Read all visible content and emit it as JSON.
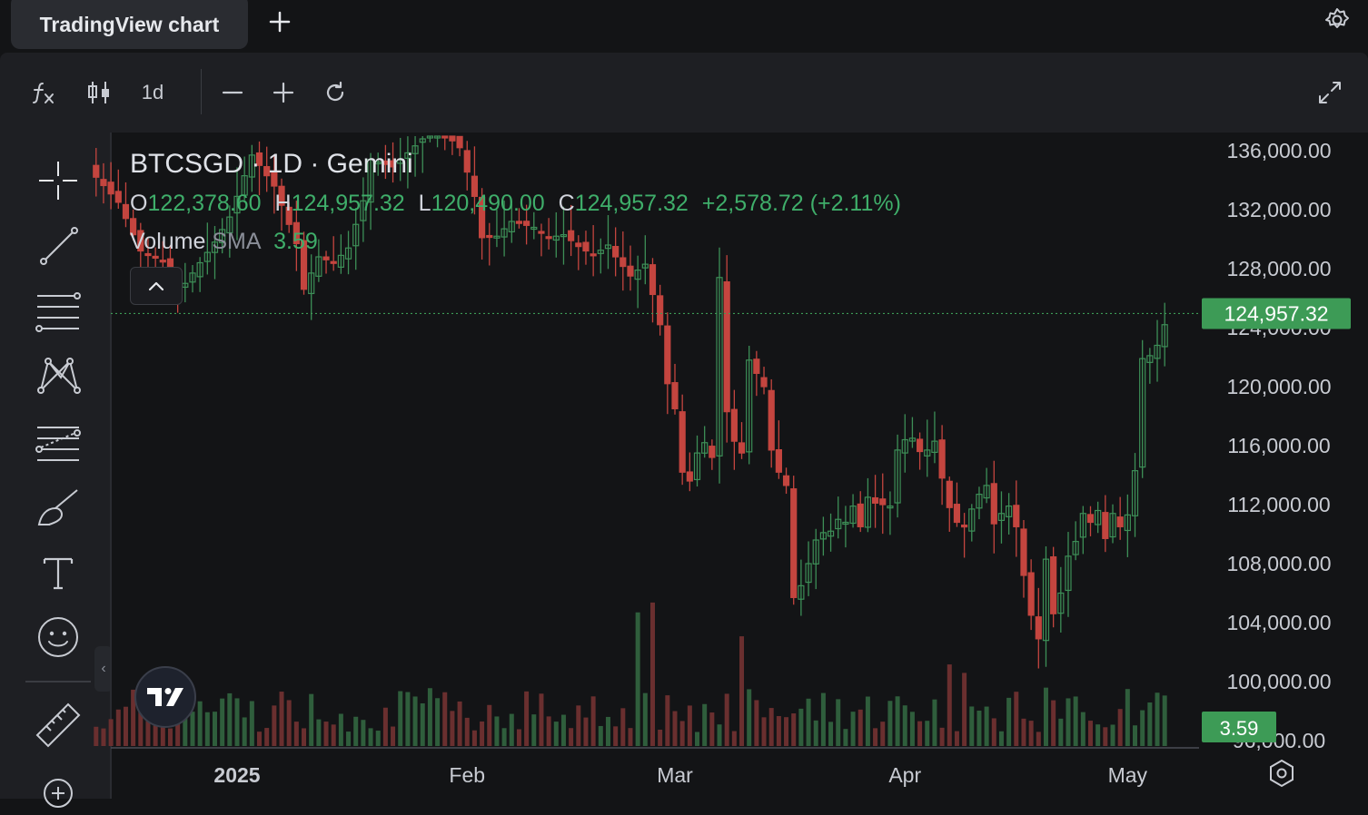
{
  "tab": {
    "title": "TradingView chart"
  },
  "toolbar": {
    "interval": "1d"
  },
  "legend": {
    "symbol_line": "BTCSGD · 1D · Gemini",
    "o_label": "O",
    "o_value": "122,378.60",
    "h_label": "H",
    "h_value": "124,957.32",
    "l_label": "L",
    "l_value": "120,490.00",
    "c_label": "C",
    "c_value": "124,957.32",
    "change": "+2,578.72 (+2.11%)",
    "volume_label": "Volume",
    "sma_label": "SMA",
    "volume_value": "3.59"
  },
  "colors": {
    "up": "#3d8f57",
    "down": "#c4453f",
    "volume_up": "#2f5e3c",
    "volume_down": "#6a2f2f",
    "price_badge": "#3d9b56"
  },
  "icons": [
    "function-icon",
    "candlestick-icon",
    "zoom-out-icon",
    "zoom-in-icon",
    "reset-icon",
    "fullscreen-icon",
    "settings-icon",
    "crosshair-icon",
    "trendline-icon",
    "fib-icon",
    "pattern-icon",
    "projection-icon",
    "brush-icon",
    "text-icon",
    "emoji-icon",
    "ruler-icon",
    "zoom-plus-icon",
    "tradingview-logo-icon"
  ],
  "chart_data": {
    "type": "candlestick",
    "title": "BTCSGD · 1D · Gemini",
    "y_ticks": [
      "136,000.00",
      "132,000.00",
      "128,000.00",
      "124,000.00",
      "120,000.00",
      "116,000.00",
      "112,000.00",
      "108,000.00",
      "104,000.00",
      "100,000.00",
      "96,000.00"
    ],
    "y_tick_values": [
      136000,
      132000,
      128000,
      124000,
      120000,
      116000,
      112000,
      108000,
      104000,
      100000,
      96000
    ],
    "x_ticks": [
      "2025",
      "Feb",
      "Mar",
      "Apr",
      "May"
    ],
    "x_tick_dates": [
      "2025-01-01",
      "2025-02-01",
      "2025-03-01",
      "2025-04-01",
      "2025-05-01"
    ],
    "last_price": 124957.32,
    "last_price_label": "124,957.32",
    "last_volume_label": "3.59",
    "dates": [
      "2024-12-13",
      "2024-12-14",
      "2024-12-15",
      "2024-12-16",
      "2024-12-17",
      "2024-12-18",
      "2024-12-19",
      "2024-12-20",
      "2024-12-21",
      "2024-12-22",
      "2024-12-23",
      "2024-12-24",
      "2024-12-25",
      "2024-12-26",
      "2024-12-27",
      "2024-12-28",
      "2024-12-29",
      "2024-12-30",
      "2024-12-31",
      "2025-01-01",
      "2025-01-02",
      "2025-01-03",
      "2025-01-04",
      "2025-01-05",
      "2025-01-06",
      "2025-01-07",
      "2025-01-08",
      "2025-01-09",
      "2025-01-10",
      "2025-01-11",
      "2025-01-12",
      "2025-01-13",
      "2025-01-14",
      "2025-01-15",
      "2025-01-16",
      "2025-01-17",
      "2025-01-18",
      "2025-01-19",
      "2025-01-20",
      "2025-01-21",
      "2025-01-22",
      "2025-01-23",
      "2025-01-24",
      "2025-01-25",
      "2025-01-26",
      "2025-01-27",
      "2025-01-28",
      "2025-01-29",
      "2025-01-30",
      "2025-01-31",
      "2025-02-01",
      "2025-02-02",
      "2025-02-03",
      "2025-02-04",
      "2025-02-05",
      "2025-02-06",
      "2025-02-07",
      "2025-02-08",
      "2025-02-09",
      "2025-02-10",
      "2025-02-11",
      "2025-02-12",
      "2025-02-13",
      "2025-02-14",
      "2025-02-15",
      "2025-02-16",
      "2025-02-17",
      "2025-02-18",
      "2025-02-19",
      "2025-02-20",
      "2025-02-21",
      "2025-02-22",
      "2025-02-23",
      "2025-02-24",
      "2025-02-25",
      "2025-02-26",
      "2025-02-27",
      "2025-02-28",
      "2025-03-01",
      "2025-03-02",
      "2025-03-03",
      "2025-03-04",
      "2025-03-05",
      "2025-03-06",
      "2025-03-07",
      "2025-03-08",
      "2025-03-09",
      "2025-03-10",
      "2025-03-11",
      "2025-03-12",
      "2025-03-13",
      "2025-03-14",
      "2025-03-15",
      "2025-03-16",
      "2025-03-17",
      "2025-03-18",
      "2025-03-19",
      "2025-03-20",
      "2025-03-21",
      "2025-03-22",
      "2025-03-23",
      "2025-03-24",
      "2025-03-25",
      "2025-03-26",
      "2025-03-27",
      "2025-03-28",
      "2025-03-29",
      "2025-03-30",
      "2025-03-31",
      "2025-04-01",
      "2025-04-02",
      "2025-04-03",
      "2025-04-04",
      "2025-04-05",
      "2025-04-06",
      "2025-04-07",
      "2025-04-08",
      "2025-04-09",
      "2025-04-10",
      "2025-04-11",
      "2025-04-12",
      "2025-04-13",
      "2025-04-14",
      "2025-04-15",
      "2025-04-16",
      "2025-04-17",
      "2025-04-18",
      "2025-04-19",
      "2025-04-20",
      "2025-04-21",
      "2025-04-22",
      "2025-04-23",
      "2025-04-24",
      "2025-04-25",
      "2025-04-26",
      "2025-04-27",
      "2025-04-28",
      "2025-04-29",
      "2025-04-30",
      "2025-05-01",
      "2025-05-02",
      "2025-05-03",
      "2025-05-04",
      "2025-05-05",
      "2025-05-06"
    ],
    "close_path": [
      [
        0,
        134200
      ],
      [
        3,
        132500
      ],
      [
        6,
        129200
      ],
      [
        9,
        128500
      ],
      [
        10,
        126800
      ],
      [
        12,
        127000
      ],
      [
        14,
        128400
      ],
      [
        16,
        129800
      ],
      [
        18,
        131500
      ],
      [
        21,
        135700
      ],
      [
        24,
        133600
      ],
      [
        27,
        129700
      ],
      [
        28,
        126600
      ],
      [
        30,
        128800
      ],
      [
        32,
        128400
      ],
      [
        34,
        129400
      ],
      [
        36,
        132600
      ],
      [
        37,
        135400
      ],
      [
        40,
        134900
      ],
      [
        44,
        136800
      ],
      [
        46,
        137600
      ],
      [
        49,
        136200
      ],
      [
        51,
        132900
      ],
      [
        52,
        130100
      ],
      [
        54,
        130200
      ],
      [
        56,
        131200
      ],
      [
        59,
        130800
      ],
      [
        61,
        130100
      ],
      [
        63,
        130300
      ],
      [
        65,
        129500
      ],
      [
        67,
        128900
      ],
      [
        69,
        129600
      ],
      [
        70,
        128800
      ],
      [
        72,
        127500
      ],
      [
        74,
        128300
      ],
      [
        76,
        124200
      ],
      [
        77,
        120200
      ],
      [
        78,
        118500
      ],
      [
        79,
        114200
      ],
      [
        80,
        113600
      ],
      [
        81,
        115500
      ],
      [
        82,
        116200
      ],
      [
        83,
        115200
      ],
      [
        84,
        127400
      ],
      [
        85,
        118300
      ],
      [
        86,
        116300
      ],
      [
        87,
        115500
      ],
      [
        88,
        121800
      ],
      [
        90,
        120000
      ],
      [
        91,
        115700
      ],
      [
        92,
        114200
      ],
      [
        93,
        113300
      ],
      [
        94,
        105700
      ],
      [
        95,
        106500
      ],
      [
        96,
        108000
      ],
      [
        97,
        109600
      ],
      [
        98,
        110100
      ],
      [
        99,
        110200
      ],
      [
        100,
        111000
      ],
      [
        101,
        110800
      ],
      [
        102,
        111900
      ],
      [
        103,
        110500
      ],
      [
        104,
        112500
      ],
      [
        105,
        112100
      ],
      [
        106,
        112000
      ],
      [
        107,
        111900
      ],
      [
        108,
        115700
      ],
      [
        109,
        116400
      ],
      [
        110,
        116500
      ],
      [
        111,
        115600
      ],
      [
        112,
        115700
      ],
      [
        113,
        116300
      ],
      [
        114,
        113800
      ],
      [
        115,
        111800
      ],
      [
        116,
        110800
      ],
      [
        117,
        110500
      ],
      [
        118,
        111700
      ],
      [
        119,
        112700
      ],
      [
        120,
        113300
      ],
      [
        121,
        110700
      ],
      [
        122,
        111400
      ],
      [
        123,
        111900
      ],
      [
        124,
        110500
      ],
      [
        125,
        107200
      ],
      [
        126,
        104500
      ],
      [
        127,
        102900
      ],
      [
        128,
        108300
      ],
      [
        129,
        104600
      ],
      [
        130,
        106000
      ],
      [
        131,
        108500
      ],
      [
        132,
        109500
      ],
      [
        133,
        111400
      ],
      [
        134,
        110800
      ],
      [
        135,
        111600
      ],
      [
        136,
        109700
      ],
      [
        137,
        111400
      ],
      [
        138,
        110500
      ],
      [
        139,
        111300
      ],
      [
        140,
        114300
      ],
      [
        141,
        121900
      ],
      [
        142,
        122100
      ],
      [
        143,
        122800
      ],
      [
        144,
        124200
      ],
      [
        145,
        123000
      ],
      [
        146,
        124200
      ],
      [
        147,
        122900
      ],
      [
        148,
        123500
      ],
      [
        149,
        122700
      ],
      [
        150,
        125800
      ],
      [
        151,
        124400
      ],
      [
        152,
        122700
      ],
      [
        153,
        122400
      ],
      [
        154,
        124957
      ]
    ],
    "volume_peaks": [
      {
        "date": "2025-02-24",
        "volume": 9.5
      },
      {
        "date": "2025-02-26",
        "volume": 10.2
      },
      {
        "date": "2025-03-10",
        "volume": 7.8
      },
      {
        "date": "2025-04-07",
        "volume": 5.8
      },
      {
        "date": "2025-04-09",
        "volume": 5.2
      }
    ]
  }
}
